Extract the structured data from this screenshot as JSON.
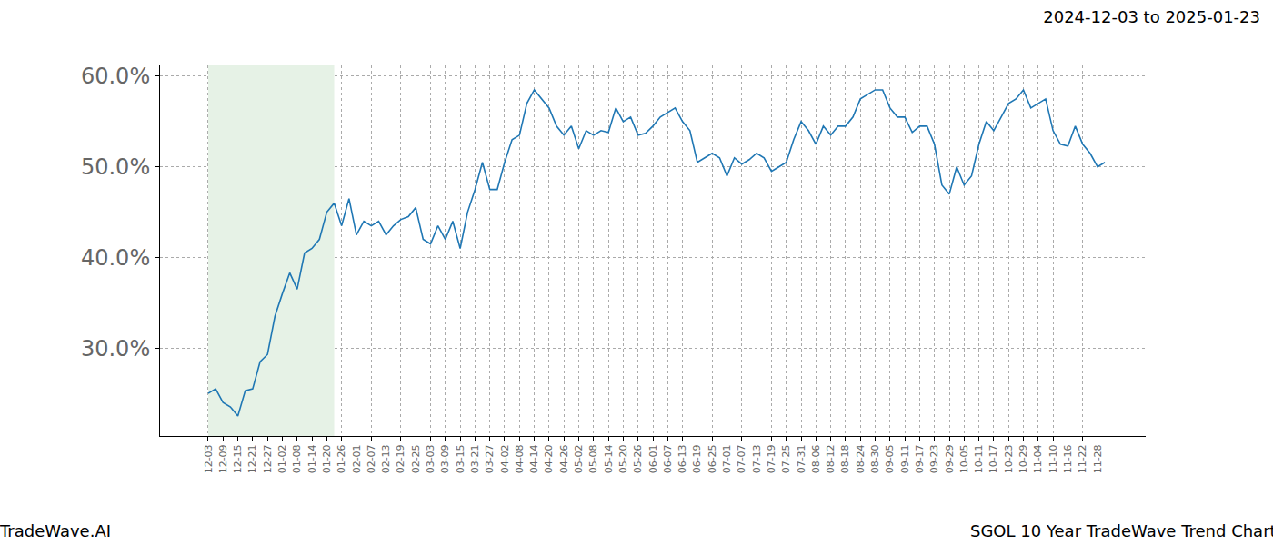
{
  "chart_data": {
    "type": "line",
    "title": "2024-12-03 to 2025-01-23",
    "annotations": [
      "TradeWave.AI",
      "SGOL 10 Year TradeWave Trend Chart"
    ],
    "categories": [
      "12-03",
      null,
      "12-09",
      null,
      "12-15",
      null,
      "12-21",
      null,
      "12-27",
      null,
      "01-02",
      null,
      "01-08",
      null,
      "01-14",
      null,
      "01-20",
      null,
      "01-26",
      null,
      "02-01",
      null,
      "02-07",
      null,
      "02-13",
      null,
      "02-19",
      null,
      "02-25",
      null,
      "03-03",
      null,
      "03-09",
      null,
      "03-15",
      null,
      "03-21",
      null,
      "03-27",
      null,
      "04-02",
      null,
      "04-08",
      null,
      "04-14",
      null,
      "04-20",
      null,
      "04-26",
      null,
      "05-02",
      null,
      "05-08",
      null,
      "05-14",
      null,
      "05-20",
      null,
      "05-26",
      null,
      "06-01",
      null,
      "06-07",
      null,
      "06-13",
      null,
      "06-19",
      null,
      "06-25",
      null,
      "07-01",
      null,
      "07-07",
      null,
      "07-13",
      null,
      "07-19",
      null,
      "07-25",
      null,
      "07-31",
      null,
      "08-06",
      null,
      "08-12",
      null,
      "08-18",
      null,
      "08-24",
      null,
      "08-30",
      null,
      "09-05",
      null,
      "09-11",
      null,
      "09-17",
      null,
      "09-23",
      null,
      "09-29",
      null,
      "10-05",
      null,
      "10-11",
      null,
      "10-17",
      null,
      "10-23",
      null,
      "10-29",
      null,
      "11-04",
      null,
      "11-10",
      null,
      "11-16",
      null,
      "11-22",
      null,
      "11-28",
      null
    ],
    "series": [
      {
        "type": "area",
        "color": "#e6f2e6",
        "values": [
          61.2,
          61.2,
          61.2,
          61.2,
          61.2,
          61.2,
          61.2,
          61.2,
          61.2,
          61.2,
          61.2,
          61.2,
          61.2,
          61.2,
          61.2,
          61.2,
          61.2,
          61.2,
          null,
          null,
          null,
          null,
          null,
          null,
          null,
          null,
          null,
          null,
          null,
          null,
          null,
          null,
          null,
          null,
          null,
          null,
          null,
          null,
          null,
          null,
          null,
          null,
          null,
          null,
          null,
          null,
          null,
          null,
          null,
          null,
          null,
          null,
          null,
          null,
          null,
          null,
          null,
          null,
          null,
          null,
          null,
          null,
          null,
          null,
          null,
          null,
          null,
          null,
          null,
          null,
          null,
          null,
          null,
          null,
          null,
          null,
          null,
          null,
          null,
          null,
          null,
          null,
          null,
          null,
          null,
          null,
          null,
          null,
          null,
          null,
          null,
          null,
          null,
          null,
          null,
          null,
          null,
          null,
          null,
          null,
          null,
          null,
          null,
          null,
          null,
          null,
          null,
          null,
          null,
          null,
          null,
          null,
          null,
          null,
          null,
          null,
          null,
          null,
          null,
          null,
          null,
          null
        ]
      },
      {
        "type": "line",
        "color": "#1f77b4",
        "values": [
          25.0,
          25.5,
          24.0,
          23.5,
          22.5,
          25.3,
          25.5,
          28.5,
          29.3,
          33.5,
          36.0,
          38.3,
          36.5,
          40.5,
          41.0,
          42.0,
          45.0,
          46.0,
          43.5,
          46.5,
          42.5,
          44.0,
          43.5,
          44.0,
          42.5,
          43.5,
          44.2,
          44.5,
          45.5,
          42.0,
          41.5,
          43.5,
          42.0,
          44.0,
          41.0,
          45.0,
          47.5,
          50.5,
          47.5,
          47.5,
          50.5,
          53.0,
          53.5,
          57.0,
          58.5,
          57.5,
          56.5,
          54.5,
          53.5,
          54.5,
          52.0,
          54.0,
          53.5,
          54.0,
          53.8,
          56.5,
          55.0,
          55.5,
          53.5,
          53.7,
          54.5,
          55.5,
          56.0,
          56.5,
          55.0,
          54.0,
          50.5,
          51.0,
          51.5,
          51.0,
          49.0,
          51.0,
          50.3,
          50.8,
          51.5,
          51.0,
          49.5,
          50.0,
          50.5,
          53.0,
          55.0,
          54.0,
          52.5,
          54.5,
          53.5,
          54.5,
          54.5,
          55.5,
          57.5,
          58.0,
          58.5,
          58.5,
          56.5,
          55.5,
          55.5,
          53.8,
          54.5,
          54.5,
          52.5,
          48.0,
          47.0,
          50.0,
          48.0,
          49.0,
          52.5,
          55.0,
          54.0,
          55.5,
          57.0,
          57.5,
          58.5,
          56.5,
          57.0,
          57.5,
          54.0,
          52.5,
          52.3,
          54.5,
          52.5,
          51.5,
          50.0,
          50.5
        ]
      }
    ],
    "ylim": [
      20.3,
      61.2
    ],
    "yticks": [
      {
        "value": 30,
        "label": "30.0%"
      },
      {
        "value": 40,
        "label": "40.0%"
      },
      {
        "value": 50,
        "label": "50.0%"
      },
      {
        "value": 60,
        "label": "60.0%"
      }
    ],
    "grid": true
  }
}
